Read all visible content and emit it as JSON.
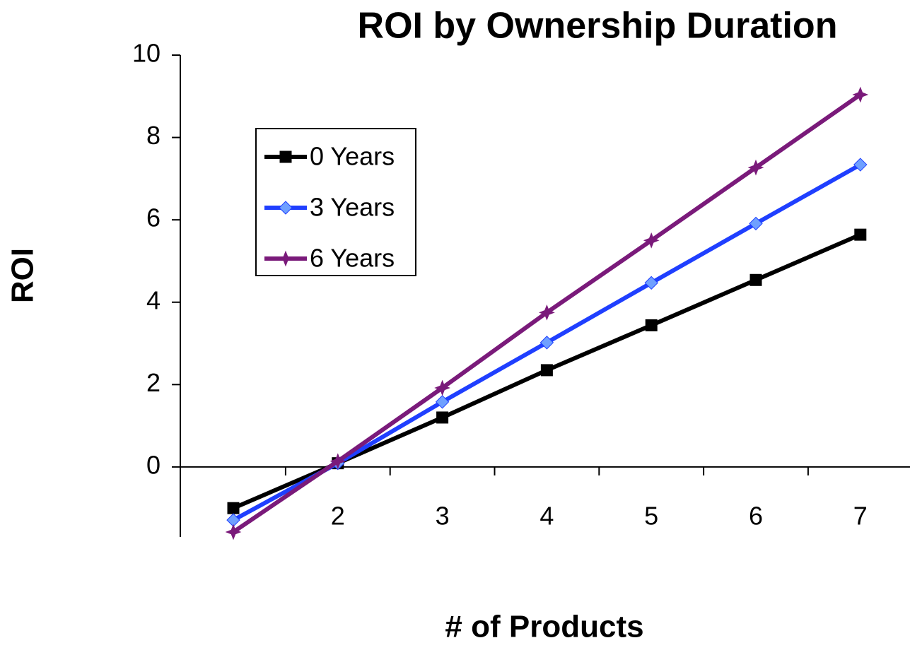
{
  "chart_data": {
    "type": "line",
    "title": "ROI by Ownership Duration",
    "x_label": "# of Products",
    "y_label": "ROI",
    "categories": [
      null,
      "2",
      "3",
      "4",
      "5",
      "6",
      "7"
    ],
    "series": [
      {
        "name": "0 Years",
        "color": "#000000",
        "marker": "square",
        "values": [
          -1.0,
          0.09,
          1.2,
          2.35,
          3.44,
          4.54,
          5.64
        ]
      },
      {
        "name": "3 Years",
        "color": "#1f3fff",
        "marker": "diamond",
        "values": [
          -1.29,
          0.09,
          1.58,
          3.02,
          4.47,
          5.91,
          7.34
        ]
      },
      {
        "name": "6 Years",
        "color": "#7a1a7a",
        "marker": "star",
        "values": [
          -1.58,
          0.14,
          1.92,
          3.75,
          5.5,
          7.27,
          9.04
        ]
      }
    ],
    "ylim": [
      -1.7,
      10
    ],
    "yticks": [
      0,
      2,
      4,
      6,
      8,
      10
    ]
  }
}
